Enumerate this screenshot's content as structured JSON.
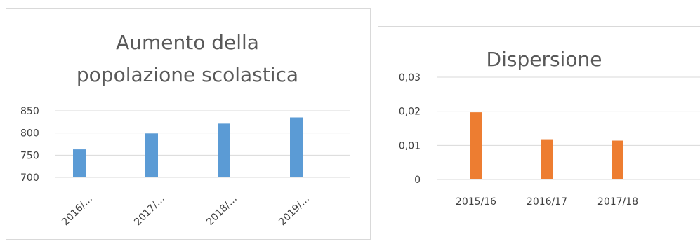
{
  "chart_data": [
    {
      "type": "bar",
      "title_lines": [
        "Aumento della",
        "popolazione scolastica"
      ],
      "categories": [
        "2016/…",
        "2017/…",
        "2018/…",
        "2019/…"
      ],
      "values": [
        763,
        799,
        821,
        835
      ],
      "ylim": [
        700,
        850
      ],
      "yticks": [
        "850",
        "800",
        "750",
        "700"
      ],
      "ytick_values": [
        850,
        800,
        750,
        700
      ],
      "color": "#5B9BD5",
      "grid": true,
      "legend": "none"
    },
    {
      "type": "bar",
      "title": "Dispersione",
      "categories": [
        "2015/16",
        "2016/17",
        "2017/18"
      ],
      "values": [
        0.0197,
        0.0118,
        0.0114
      ],
      "ylim": [
        0,
        0.03
      ],
      "yticks": [
        "0,03",
        "0,02",
        "0,01",
        "0"
      ],
      "ytick_values": [
        0.03,
        0.02,
        0.01,
        0
      ],
      "color": "#ED7D31",
      "grid": true,
      "legend": "none"
    }
  ]
}
